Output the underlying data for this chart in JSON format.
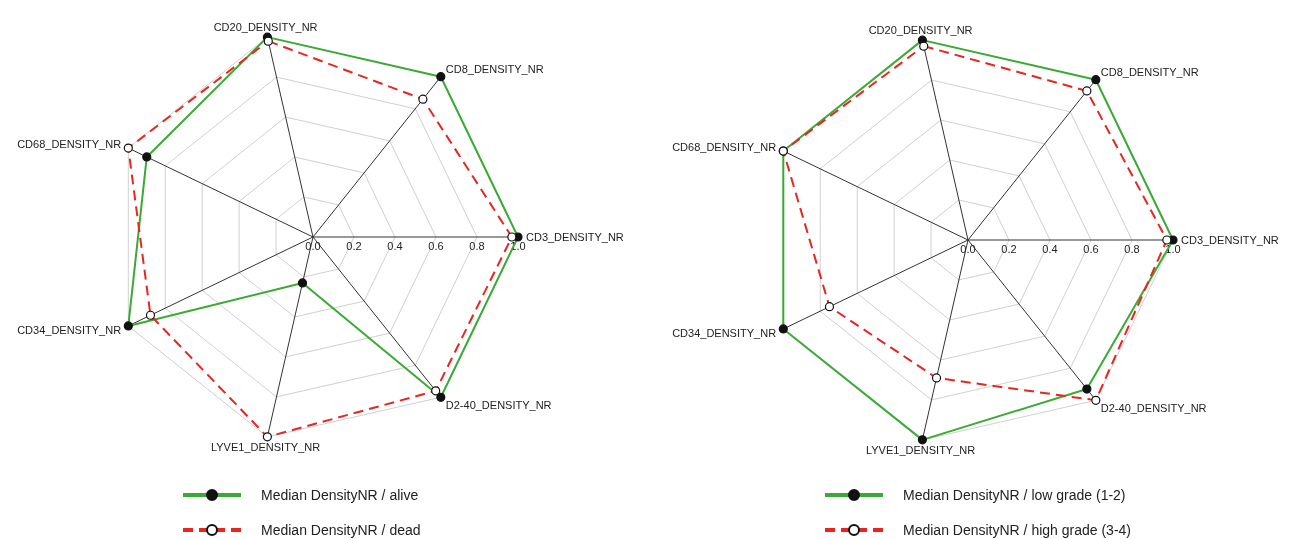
{
  "chart_data": [
    {
      "type": "radar",
      "categories": [
        "CD20_DENSITY_NR",
        "CD8_DENSITY_NR",
        "CD3_DENSITY_NR",
        "D2-40_DENSITY_NR",
        "LYVE1_DENSITY_NR",
        "CD34_DENSITY_NR",
        "CD68_DENSITY_NR"
      ],
      "series": [
        {
          "name": "Median DensityNR / alive",
          "color": "#3aaa35",
          "line_style": "solid",
          "values": [
            1.0,
            1.0,
            1.0,
            1.0,
            0.23,
            1.0,
            0.9
          ]
        },
        {
          "name": "Median DensityNR / dead",
          "color": "#e8261f",
          "line_style": "dashed",
          "values": [
            0.98,
            0.86,
            0.97,
            0.96,
            1.0,
            0.88,
            1.0
          ]
        }
      ],
      "ylim": [
        0,
        1
      ],
      "yticks": [
        {
          "value": 0,
          "label": "0.0"
        },
        {
          "value": 0.2,
          "label": "0.2"
        },
        {
          "value": 0.4,
          "label": "0.4"
        },
        {
          "value": 0.6,
          "label": "0.6"
        },
        {
          "value": 0.8,
          "label": "0.8"
        },
        {
          "value": 1,
          "label": "1.0"
        }
      ],
      "grid": true,
      "legend": "bottom",
      "marker": "circle"
    },
    {
      "type": "radar",
      "categories": [
        "CD20_DENSITY_NR",
        "CD8_DENSITY_NR",
        "CD3_DENSITY_NR",
        "D2-40_DENSITY_NR",
        "LYVE1_DENSITY_NR",
        "CD34_DENSITY_NR",
        "CD68_DENSITY_NR"
      ],
      "series": [
        {
          "name": "Median DensityNR / low grade (1-2)",
          "color": "#3aaa35",
          "line_style": "solid",
          "values": [
            1.0,
            1.0,
            1.0,
            0.93,
            1.0,
            1.0,
            1.0
          ]
        },
        {
          "name": "Median DensityNR / high grade (3-4)",
          "color": "#e8261f",
          "line_style": "dashed",
          "values": [
            0.97,
            0.93,
            0.97,
            1.0,
            0.69,
            0.75,
            1.0
          ]
        }
      ],
      "ylim": [
        0,
        1
      ],
      "yticks": [
        {
          "value": 0,
          "label": "0.0"
        },
        {
          "value": 0.2,
          "label": "0.2"
        },
        {
          "value": 0.4,
          "label": "0.4"
        },
        {
          "value": 0.6,
          "label": "0.6"
        },
        {
          "value": 0.8,
          "label": "0.8"
        },
        {
          "value": 1,
          "label": "1.0"
        }
      ],
      "grid": true,
      "legend": "bottom",
      "marker": "circle"
    }
  ]
}
